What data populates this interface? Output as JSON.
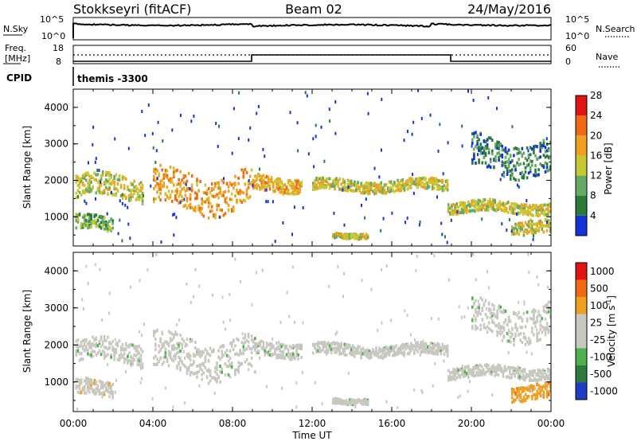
{
  "header": {
    "station": "Stokkseyri (fitACF)",
    "beam": "Beam 02",
    "date": "24/May/2016"
  },
  "top_panel": {
    "left_label": "N.Sky",
    "left_ticks": [
      "10^5",
      "10^0"
    ],
    "right_label": "N.Search",
    "right_ticks": [
      "10^5",
      "10^0"
    ]
  },
  "freq_panel": {
    "left_label_1": "Freq.",
    "left_label_2": "[MHz]",
    "left_ticks": [
      "18",
      "8"
    ],
    "right_label": "Nave",
    "right_ticks": [
      "60",
      "0"
    ]
  },
  "cpid": {
    "label": "CPID",
    "value": "themis -3300"
  },
  "x_axis": {
    "label": "Time UT",
    "ticks": [
      "00:00",
      "04:00",
      "08:00",
      "12:00",
      "16:00",
      "20:00",
      "00:00"
    ]
  },
  "chart_data": [
    {
      "type": "heatmap",
      "quantity": "Power",
      "xlabel": "Time UT",
      "ylabel": "Slant Range [km]",
      "xlim": [
        0,
        24
      ],
      "ylim": [
        200,
        4500
      ],
      "yticks": [
        "1000",
        "2000",
        "3000",
        "4000"
      ],
      "colorbar": {
        "label": "Power [dB]",
        "ticks": [
          "4",
          "8",
          "12",
          "16",
          "20",
          "24",
          "28"
        ],
        "colors": [
          "#1432d8",
          "#2a7a3a",
          "#66aa66",
          "#c8c832",
          "#f0a020",
          "#f06a14",
          "#e01414"
        ]
      },
      "echo_bands": [
        {
          "t": [
            0.1,
            3.5
          ],
          "range": [
            1500,
            2100
          ],
          "level": 3
        },
        {
          "t": [
            0.1,
            2.0
          ],
          "range": [
            600,
            1000
          ],
          "level": 2
        },
        {
          "t": [
            4.0,
            9.0
          ],
          "range": [
            1200,
            2200
          ],
          "level": 4
        },
        {
          "t": [
            9.0,
            11.5
          ],
          "range": [
            1700,
            2100
          ],
          "level": 4
        },
        {
          "t": [
            12.0,
            18.8
          ],
          "range": [
            1700,
            2000
          ],
          "level": 3
        },
        {
          "t": [
            13.0,
            14.8
          ],
          "range": [
            420,
            560
          ],
          "level": 3
        },
        {
          "t": [
            18.8,
            24.0
          ],
          "range": [
            1100,
            1400
          ],
          "level": 3
        },
        {
          "t": [
            20.0,
            24.0
          ],
          "range": [
            2200,
            3100
          ],
          "level": 1
        },
        {
          "t": [
            22.0,
            24.0
          ],
          "range": [
            500,
            900
          ],
          "level": 3
        }
      ]
    },
    {
      "type": "heatmap",
      "quantity": "Velocity",
      "xlabel": "Time UT",
      "ylabel": "Slant Range [km]",
      "xlim": [
        0,
        24
      ],
      "ylim": [
        200,
        4500
      ],
      "yticks": [
        "1000",
        "2000",
        "3000",
        "4000"
      ],
      "colorbar": {
        "label": "Velocity [m s^-1]",
        "ticks": [
          "1000",
          "500",
          "100",
          "25",
          "-25",
          "-100",
          "-500",
          "-1000"
        ],
        "colors": [
          "#1e3cc8",
          "#2e7a3e",
          "#4cb04c",
          "#c8c8c0",
          "#c8c8c0",
          "#f0a020",
          "#f06a14",
          "#e01414"
        ]
      },
      "echo_bands": [
        {
          "t": [
            0.1,
            3.5
          ],
          "range": [
            1500,
            2100
          ],
          "level": 3
        },
        {
          "t": [
            0.1,
            2.0
          ],
          "range": [
            600,
            1000
          ],
          "level": 4
        },
        {
          "t": [
            4.0,
            9.0
          ],
          "range": [
            1200,
            2200
          ],
          "level": 3
        },
        {
          "t": [
            9.0,
            11.5
          ],
          "range": [
            1700,
            2100
          ],
          "level": 3
        },
        {
          "t": [
            12.0,
            18.8
          ],
          "range": [
            1700,
            2000
          ],
          "level": 3
        },
        {
          "t": [
            13.0,
            14.8
          ],
          "range": [
            420,
            560
          ],
          "level": 3
        },
        {
          "t": [
            18.8,
            24.0
          ],
          "range": [
            1100,
            1400
          ],
          "level": 3
        },
        {
          "t": [
            20.0,
            24.0
          ],
          "range": [
            2200,
            3100
          ],
          "level": 3
        },
        {
          "t": [
            22.0,
            24.0
          ],
          "range": [
            500,
            900
          ],
          "level": 5
        }
      ]
    }
  ]
}
